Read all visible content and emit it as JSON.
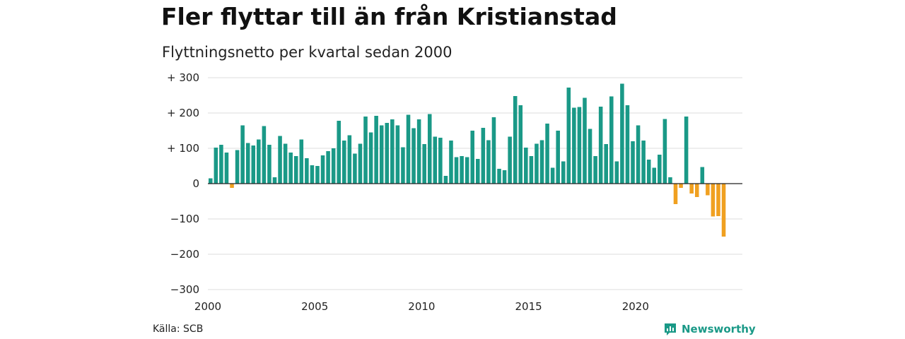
{
  "header": {
    "title": "Fler flyttar till än från Kristianstad",
    "subtitle": "Flyttningsnetto per kvartal sedan 2000"
  },
  "footer": {
    "source": "Källa: SCB",
    "brand": "Newsworthy"
  },
  "colors": {
    "positive": "#1a9987",
    "negative": "#f0a020",
    "grid": "#dddddd",
    "zero_line": "#222222",
    "brand": "#1a9987"
  },
  "icons": {
    "brand": "bar-chart-speech-bubble-icon"
  },
  "chart_data": {
    "type": "bar",
    "ylim": [
      -300,
      300
    ],
    "yticks": [
      300,
      200,
      100,
      0,
      -100,
      -200,
      -300
    ],
    "ytick_labels": [
      "+ 300",
      "+ 200",
      "+ 100",
      "0",
      "−100",
      "−200",
      "−300"
    ],
    "xticks": [
      2000,
      2005,
      2010,
      2015,
      2020
    ],
    "xtick_labels": [
      "2000",
      "2005",
      "2010",
      "2015",
      "2020"
    ],
    "grid": true,
    "legend": "none",
    "x_start": 2000,
    "periods_per_year": 4,
    "values": [
      15,
      102,
      110,
      88,
      -12,
      95,
      165,
      115,
      108,
      125,
      163,
      110,
      18,
      135,
      113,
      88,
      78,
      125,
      72,
      52,
      50,
      80,
      92,
      100,
      178,
      122,
      137,
      85,
      113,
      190,
      145,
      192,
      165,
      172,
      182,
      165,
      103,
      195,
      157,
      182,
      112,
      197,
      133,
      130,
      22,
      122,
      75,
      78,
      75,
      150,
      70,
      158,
      123,
      188,
      42,
      38,
      133,
      248,
      222,
      102,
      78,
      113,
      123,
      170,
      45,
      150,
      63,
      272,
      215,
      217,
      243,
      155,
      78,
      218,
      112,
      247,
      63,
      283,
      222,
      120,
      165,
      122,
      68,
      45,
      82,
      183,
      18,
      -58,
      -12,
      190,
      -28,
      -38,
      47,
      -33,
      -93,
      -92,
      -150
    ]
  }
}
